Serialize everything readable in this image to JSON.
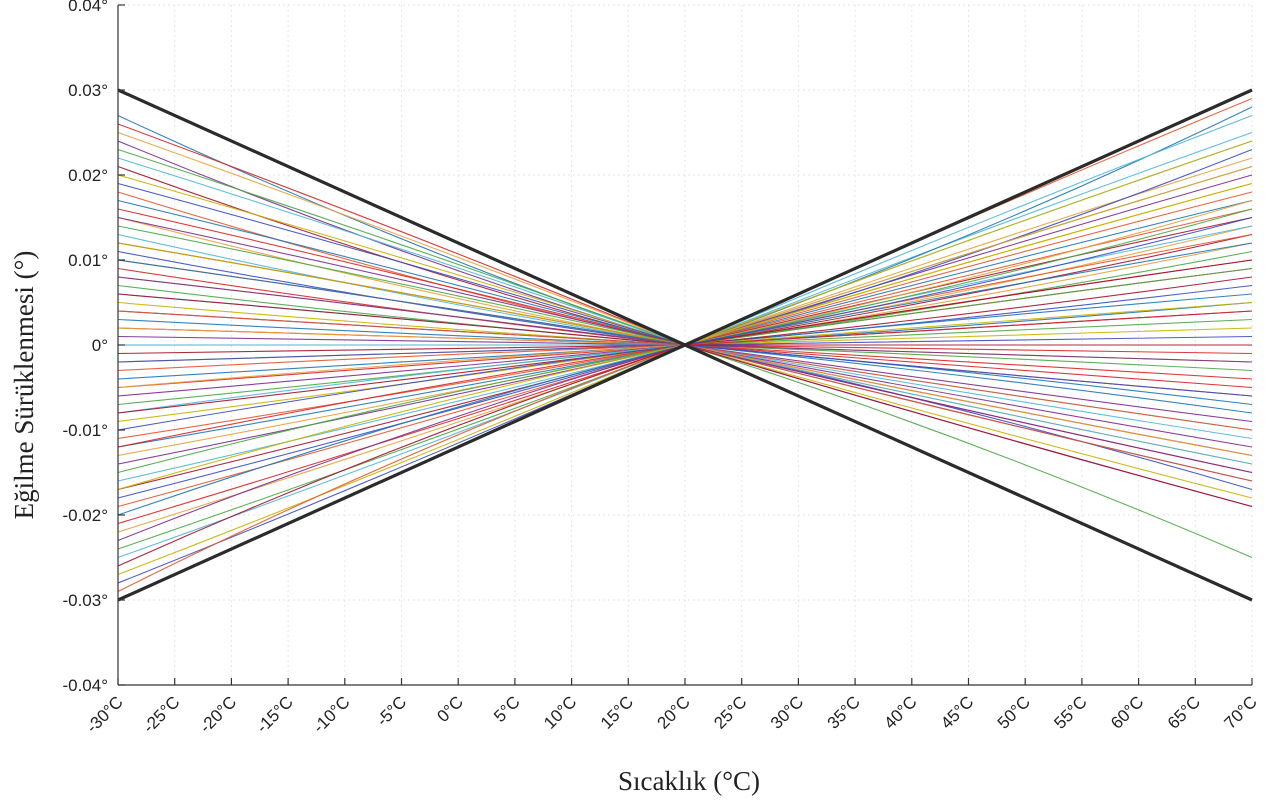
{
  "chart_data": {
    "type": "line",
    "title": "",
    "xlabel": "Sıcaklık (°C)",
    "ylabel": "Eğilme Sürüklenmesi (°)",
    "xlim": [
      -30,
      70
    ],
    "ylim": [
      -0.04,
      0.04
    ],
    "x_ticks": [
      -30,
      -25,
      -20,
      -15,
      -10,
      -5,
      0,
      5,
      10,
      15,
      20,
      25,
      30,
      35,
      40,
      45,
      50,
      55,
      60,
      65,
      70
    ],
    "x_tick_labels": [
      "-30°C",
      "-25°C",
      "-20°C",
      "-15°C",
      "-10°C",
      "-5°C",
      "0°C",
      "5°C",
      "10°C",
      "15°C",
      "20°C",
      "25°C",
      "30°C",
      "35°C",
      "40°C",
      "45°C",
      "50°C",
      "55°C",
      "60°C",
      "65°C",
      "70°C"
    ],
    "y_ticks": [
      -0.04,
      -0.03,
      -0.02,
      -0.01,
      0,
      0.01,
      0.02,
      0.03,
      0.04
    ],
    "y_tick_labels": [
      "-0.04°",
      "-0.03°",
      "-0.02°",
      "-0.01°",
      "0°",
      "0.01°",
      "0.02°",
      "0.03°",
      "0.04°"
    ],
    "grid": true,
    "pivot": {
      "x": 20,
      "y": 0
    },
    "envelope": [
      {
        "x": [
          -30,
          20,
          70
        ],
        "y": [
          0.03,
          0,
          0.03
        ]
      },
      {
        "x": [
          -30,
          20,
          70
        ],
        "y": [
          -0.03,
          0,
          -0.03
        ]
      }
    ],
    "curves_start_end": [
      [
        0.027,
        0.005
      ],
      [
        0.026,
        -0.004
      ],
      [
        0.025,
        0.022
      ],
      [
        0.024,
        -0.012
      ],
      [
        0.023,
        -0.025
      ],
      [
        0.022,
        0.024
      ],
      [
        0.021,
        -0.013
      ],
      [
        0.02,
        0.019
      ],
      [
        0.019,
        -0.017
      ],
      [
        0.018,
        -0.006
      ],
      [
        0.017,
        0.017
      ],
      [
        0.016,
        -0.015
      ],
      [
        0.015,
        0.014
      ],
      [
        0.015,
        -0.019
      ],
      [
        0.014,
        0.021
      ],
      [
        0.013,
        -0.01
      ],
      [
        0.012,
        0.013
      ],
      [
        0.012,
        0.002
      ],
      [
        0.011,
        -0.016
      ],
      [
        0.01,
        0.016
      ],
      [
        0.01,
        -0.008
      ],
      [
        0.009,
        0.009
      ],
      [
        0.008,
        -0.014
      ],
      [
        0.008,
        0.004
      ],
      [
        0.007,
        0.011
      ],
      [
        0.006,
        -0.011
      ],
      [
        0.006,
        0.015
      ],
      [
        0.005,
        -0.002
      ],
      [
        0.004,
        0.007
      ],
      [
        0.004,
        -0.016
      ],
      [
        0.003,
        0.006
      ],
      [
        0.002,
        -0.005
      ],
      [
        0.002,
        0.012
      ],
      [
        0.001,
        -0.009
      ],
      [
        0.0,
        0.003
      ],
      [
        0.0,
        -0.014
      ],
      [
        -0.001,
        0.008
      ],
      [
        -0.002,
        -0.018
      ],
      [
        -0.002,
        0.001
      ],
      [
        -0.003,
        0.018
      ],
      [
        -0.004,
        -0.007
      ],
      [
        -0.005,
        0.01
      ],
      [
        -0.005,
        -0.013
      ],
      [
        -0.006,
        0.02
      ],
      [
        -0.007,
        -0.003
      ],
      [
        -0.008,
        0.014
      ],
      [
        -0.008,
        -0.019
      ],
      [
        -0.009,
        0.005
      ],
      [
        -0.01,
        0.023
      ],
      [
        -0.011,
        -0.01
      ],
      [
        -0.012,
        0.012
      ],
      [
        -0.012,
        -0.001
      ],
      [
        -0.013,
        0.017
      ],
      [
        -0.014,
        -0.015
      ],
      [
        -0.015,
        0.009
      ],
      [
        -0.016,
        0.025
      ],
      [
        -0.017,
        0.0
      ],
      [
        -0.017,
        0.019
      ],
      [
        -0.018,
        -0.006
      ],
      [
        -0.019,
        0.013
      ],
      [
        -0.02,
        0.028
      ],
      [
        -0.021,
        0.004
      ],
      [
        -0.022,
        0.021
      ],
      [
        -0.023,
        -0.002
      ],
      [
        -0.024,
        0.016
      ],
      [
        -0.025,
        0.027
      ],
      [
        -0.026,
        0.01
      ],
      [
        -0.027,
        0.024
      ],
      [
        -0.028,
        0.015
      ],
      [
        -0.029,
        0.029
      ]
    ],
    "palette": [
      "#1f77b4",
      "#d62728",
      "#e6a23c",
      "#7b2d8e",
      "#4aa845",
      "#4fb6d8",
      "#a3142f",
      "#c8b400",
      "#3b4cc0",
      "#e4572e"
    ]
  }
}
